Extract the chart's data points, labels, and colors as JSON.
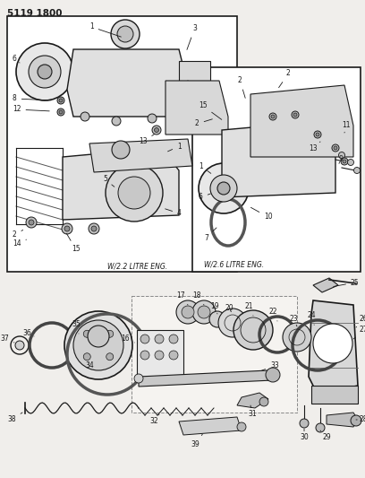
{
  "bg_color": "#f0eeeb",
  "line_color": "#1a1a1a",
  "text_color": "#1a1a1a",
  "label_fontsize": 5.5,
  "title_fontsize": 7.5,
  "fig_width": 4.08,
  "fig_height": 5.33,
  "diagram_id": "5119 1800",
  "w22_label": "W/2.2 LITRE ENG.",
  "w26_label": "W/2.6 LITRE ENG."
}
